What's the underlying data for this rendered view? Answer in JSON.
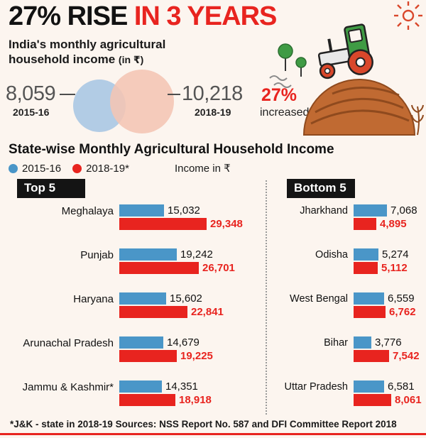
{
  "colors": {
    "blue": "#4a96c8",
    "red": "#e8241f",
    "black_box": "#141414"
  },
  "header": {
    "title_black": "27% RISE",
    "title_red": " IN 3 YEARS",
    "subtitle": "India's monthly agricultural household income ",
    "subtitle_unit": "(in ₹)"
  },
  "summary": {
    "left_value": "8,059",
    "left_label": "2015-16",
    "right_value": "10,218",
    "right_label": "2018-19",
    "pct": "27%",
    "pct_label": "increased"
  },
  "section": {
    "title": "State-wise Monthly Agricultural Household Income",
    "legend": [
      {
        "label": "2015-16",
        "color": "#4a96c8"
      },
      {
        "label": "2018-19*",
        "color": "#e8241f"
      }
    ],
    "unit_label": "Income in ₹"
  },
  "chart_data": {
    "type": "bar",
    "orientation": "horizontal",
    "title": "State-wise Monthly Agricultural Household Income",
    "unit": "₹ per month",
    "series_names": [
      "2015-16",
      "2018-19"
    ],
    "panels": [
      {
        "title": "Top 5",
        "xmax": 30000,
        "rows": [
          {
            "state": "Meghalaya",
            "values": [
              15032,
              29348
            ],
            "labels": [
              "15,032",
              "29,348"
            ]
          },
          {
            "state": "Punjab",
            "values": [
              19242,
              26701
            ],
            "labels": [
              "19,242",
              "26,701"
            ]
          },
          {
            "state": "Haryana",
            "values": [
              15602,
              22841
            ],
            "labels": [
              "15,602",
              "22,841"
            ]
          },
          {
            "state": "Arunachal Pradesh",
            "values": [
              14679,
              19225
            ],
            "labels": [
              "14,679",
              "19,225"
            ]
          },
          {
            "state": "Jammu & Kashmir*",
            "values": [
              14351,
              18918
            ],
            "labels": [
              "14,351",
              "18,918"
            ]
          }
        ]
      },
      {
        "title": "Bottom 5",
        "xmax": 8500,
        "rows": [
          {
            "state": "Jharkhand",
            "values": [
              7068,
              4895
            ],
            "labels": [
              "7,068",
              "4,895"
            ]
          },
          {
            "state": "Odisha",
            "values": [
              5274,
              5112
            ],
            "labels": [
              "5,274",
              "5,112"
            ]
          },
          {
            "state": "West Bengal",
            "values": [
              6559,
              6762
            ],
            "labels": [
              "6,559",
              "6,762"
            ]
          },
          {
            "state": "Bihar",
            "values": [
              3776,
              7542
            ],
            "labels": [
              "3,776",
              "7,542"
            ]
          },
          {
            "state": "Uttar Pradesh",
            "values": [
              6581,
              8061
            ],
            "labels": [
              "6,581",
              "8,061"
            ]
          }
        ]
      }
    ]
  },
  "footer": {
    "note": "*J&K - state in 2018-19 Sources: NSS Report No. 587 and DFI Committee Report 2018"
  }
}
